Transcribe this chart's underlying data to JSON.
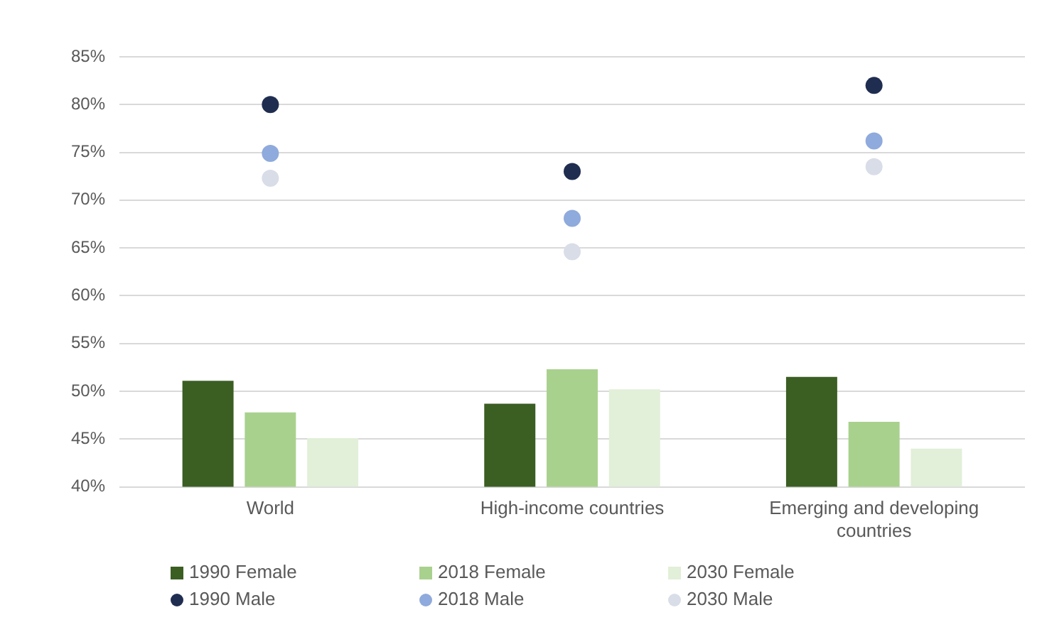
{
  "chart_data": {
    "type": "bar",
    "categories": [
      "World",
      "High-income countries",
      "Emerging and developing countries"
    ],
    "series": [
      {
        "name": "1990 Female",
        "color": "#3b5e23",
        "values": [
          51.1,
          48.7,
          51.5
        ]
      },
      {
        "name": "2018 Female",
        "color": "#a9d18e",
        "values": [
          47.8,
          52.3,
          46.8
        ]
      },
      {
        "name": "2030 Female",
        "color": "#e2efd9",
        "values": [
          45.1,
          50.2,
          44.0
        ]
      },
      {
        "name": "1990 Male",
        "type": "scatter",
        "color": "#1f2d50",
        "x": [
          "World",
          "High-income countries",
          "Emerging and developing countries"
        ],
        "values": [
          80.0,
          73.0,
          82.0
        ]
      },
      {
        "name": "2018 Male",
        "type": "scatter",
        "color": "#8faadc",
        "x": [
          "World",
          "High-income countries",
          "Emerging and developing countries"
        ],
        "values": [
          74.9,
          68.1,
          76.2
        ]
      },
      {
        "name": "2030 Male",
        "type": "scatter",
        "color": "#d9dde8",
        "x": [
          "World",
          "High-income countries",
          "Emerging and developing countries"
        ],
        "values": [
          72.3,
          64.6,
          73.5
        ]
      }
    ],
    "ylim": [
      40,
      85
    ],
    "yticks": [
      {
        "value": 40,
        "label": "40%"
      },
      {
        "value": 45,
        "label": "45%"
      },
      {
        "value": 50,
        "label": "50%"
      },
      {
        "value": 55,
        "label": "55%"
      },
      {
        "value": 60,
        "label": "60%"
      },
      {
        "value": 65,
        "label": "65%"
      },
      {
        "value": 70,
        "label": "70%"
      },
      {
        "value": 75,
        "label": "75%"
      },
      {
        "value": 80,
        "label": "80%"
      },
      {
        "value": 85,
        "label": "85%"
      }
    ],
    "grid": "y",
    "legend": "bottom",
    "marker": "circle"
  }
}
